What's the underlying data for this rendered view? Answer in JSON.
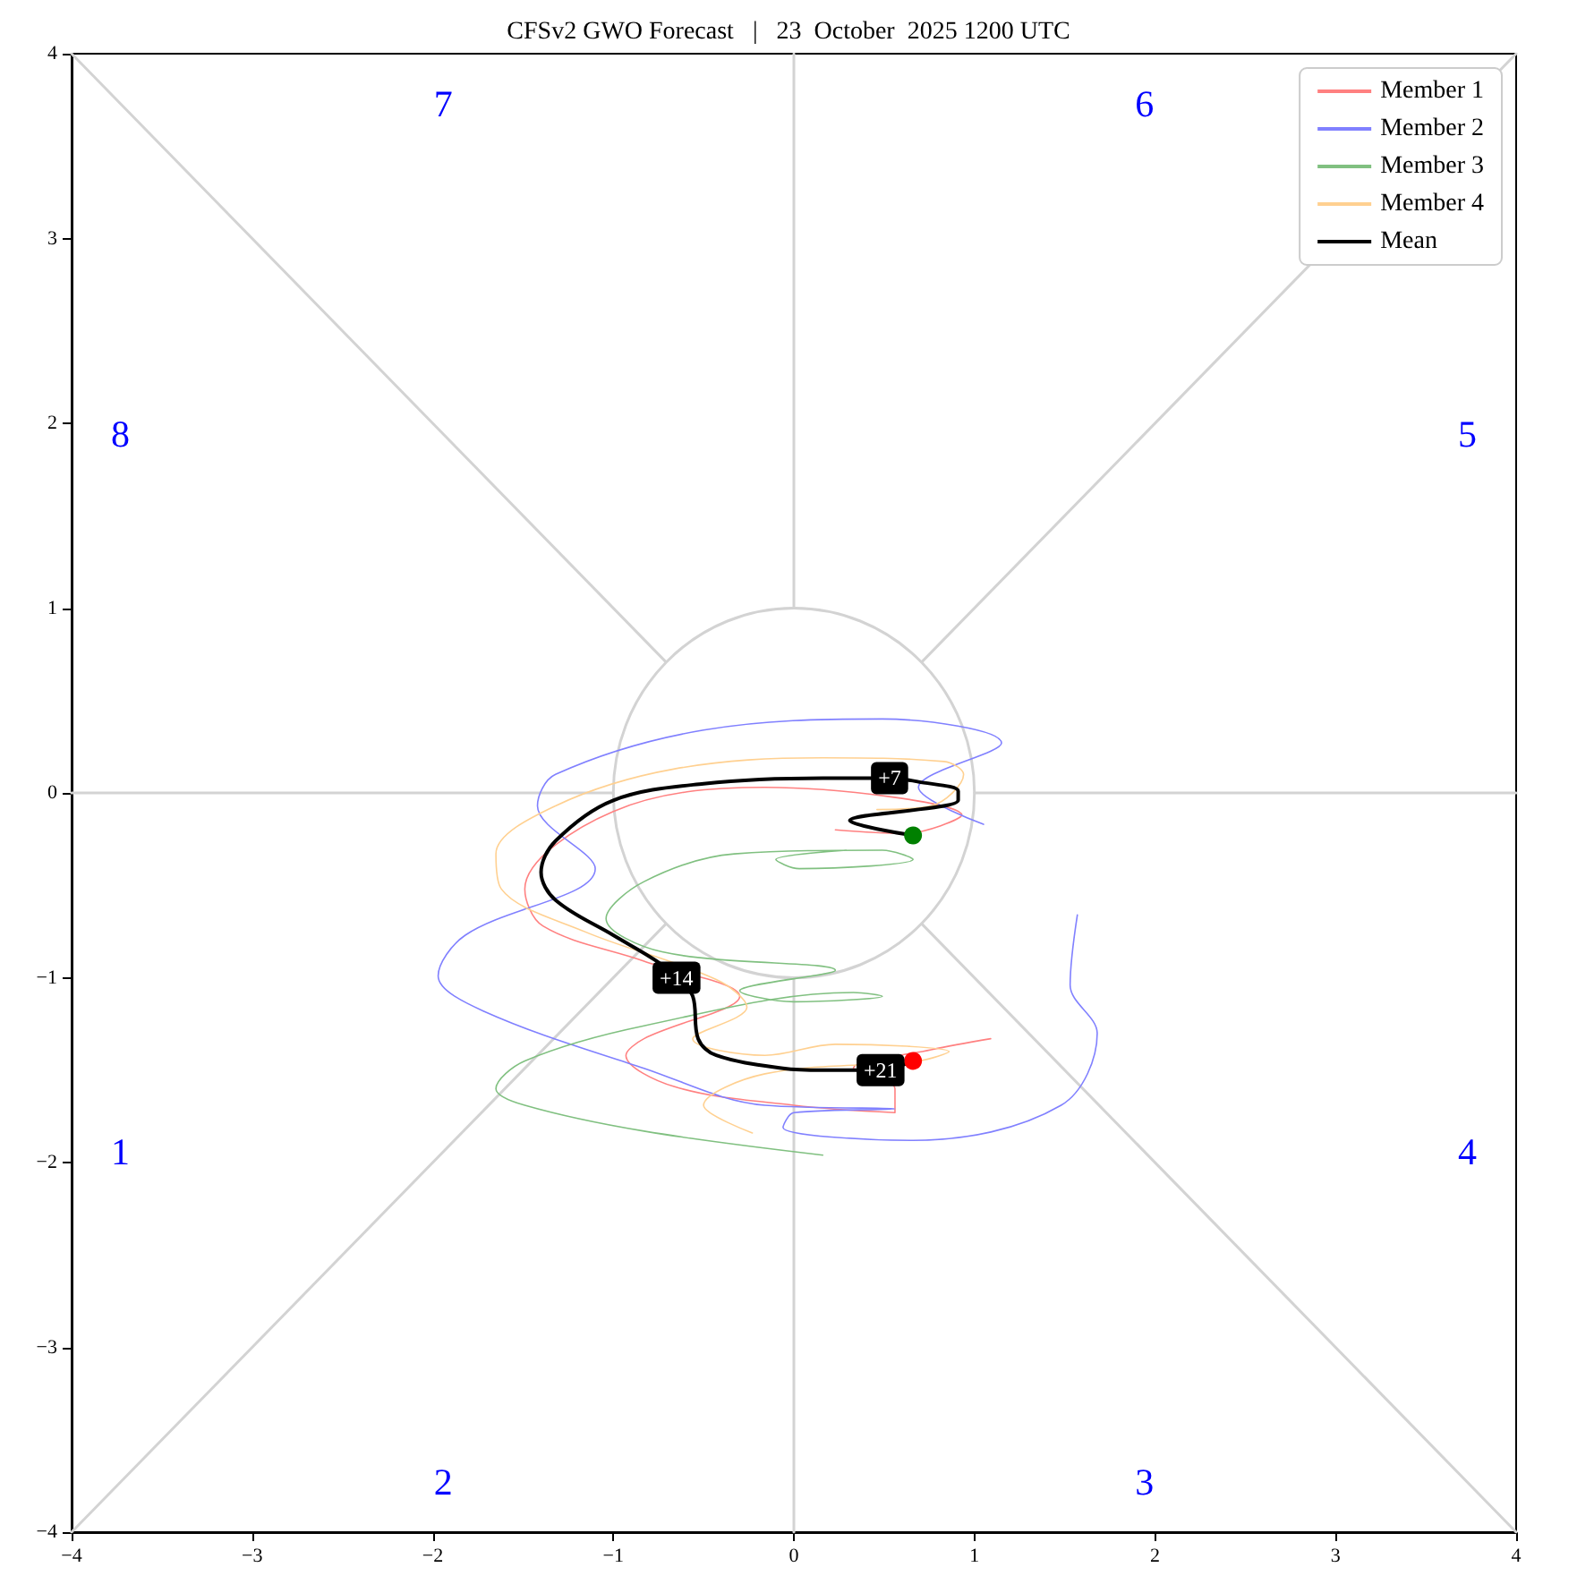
{
  "chart_data": {
    "type": "line",
    "title": "CFSv2 GWO Forecast   |   23  October  2025 1200 UTC",
    "xlim": [
      -4,
      4
    ],
    "ylim": [
      -4,
      4
    ],
    "xticks": [
      {
        "value": -4,
        "label": "−4"
      },
      {
        "value": -3,
        "label": "−3"
      },
      {
        "value": -2,
        "label": "−2"
      },
      {
        "value": -1,
        "label": "−1"
      },
      0,
      1,
      2,
      3,
      4
    ],
    "yticks": [
      {
        "value": -4,
        "label": "−4"
      },
      {
        "value": -3,
        "label": "−3"
      },
      {
        "value": -2,
        "label": "−2"
      },
      {
        "value": -1,
        "label": "−1"
      },
      0,
      1,
      2,
      3,
      4
    ],
    "marker": "none",
    "legend": "top right",
    "annotations": [
      "1",
      "2",
      "3",
      "4",
      "5",
      "6",
      "7",
      "8",
      {
        "text": "+7",
        "x": 0.53,
        "y": 0.08
      },
      {
        "text": "+14",
        "x": -0.65,
        "y": -1.0
      },
      {
        "text": "+21",
        "x": 0.48,
        "y": -1.5
      }
    ],
    "series": [
      {
        "color": "#d3d3d3",
        "x": [
          -4,
          -0.71
        ],
        "values": [
          4,
          0.71
        ]
      },
      {
        "color": "#d3d3d3",
        "x": [
          0.71,
          4
        ],
        "values": [
          -0.71,
          -4
        ]
      },
      {
        "color": "#d3d3d3",
        "x": [
          -4,
          -0.71
        ],
        "values": [
          -4,
          -0.71
        ]
      },
      {
        "color": "#d3d3d3",
        "x": [
          0.71,
          4
        ],
        "values": [
          0.71,
          4
        ]
      },
      {
        "color": "#d3d3d3",
        "x": [
          -4,
          -1
        ],
        "values": [
          0,
          0
        ]
      },
      {
        "color": "#d3d3d3",
        "x": [
          1,
          4
        ],
        "values": [
          0,
          0
        ]
      },
      {
        "color": "#d3d3d3",
        "x": [
          0,
          0
        ],
        "values": [
          4,
          1
        ]
      },
      {
        "color": "#d3d3d3",
        "x": [
          0,
          0
        ],
        "values": [
          -1,
          -4
        ]
      },
      {
        "name": "Member 1",
        "color": "#ff8080",
        "x": [
          0.23,
          0.61,
          0.93,
          -0.16,
          -1.0,
          -1.49,
          -1.39,
          -0.83,
          -0.3,
          -0.83,
          -0.93,
          -0.66,
          0,
          0.56,
          0.56,
          0.33,
          0.76,
          1.09
        ],
        "values": [
          -0.2,
          -0.22,
          -0.12,
          0.03,
          -0.1,
          -0.52,
          -0.72,
          -0.91,
          -1.1,
          -1.33,
          -1.42,
          -1.59,
          -1.69,
          -1.73,
          -1.6,
          -1.49,
          -1.39,
          -1.33
        ]
      },
      {
        "name": "Member 2",
        "color": "#8080ff",
        "x": [
          1.05,
          0.69,
          1.15,
          0.49,
          -0.5,
          -1.32,
          -1.42,
          -1.1,
          -1.82,
          -1.97,
          -1.72,
          -0.83,
          -0.16,
          0.56,
          0,
          -0.06,
          0.66,
          1.48,
          1.68,
          1.53,
          1.57
        ],
        "values": [
          -0.17,
          0.03,
          0.27,
          0.4,
          0.34,
          0.1,
          -0.07,
          -0.41,
          -0.77,
          -0.99,
          -1.18,
          -1.49,
          -1.69,
          -1.71,
          -1.73,
          -1.81,
          -1.88,
          -1.69,
          -1.3,
          -1.04,
          -0.66
        ]
      },
      {
        "name": "Member 3",
        "color": "#80c080",
        "x": [
          0.29,
          -0.1,
          0.03,
          0.66,
          0.49,
          -0.33,
          -0.83,
          -1.04,
          -0.73,
          0.23,
          -0.3,
          0,
          0.49,
          0.33,
          -0.83,
          -1.49,
          -1.65,
          -1.49,
          -0.83,
          0.16
        ],
        "values": [
          -0.31,
          -0.36,
          -0.41,
          -0.36,
          -0.31,
          -0.33,
          -0.48,
          -0.68,
          -0.86,
          -0.96,
          -1.07,
          -1.13,
          -1.1,
          -1.08,
          -1.26,
          -1.45,
          -1.6,
          -1.69,
          -1.83,
          -1.96
        ]
      },
      {
        "name": "Member 4",
        "color": "#ffd090",
        "x": [
          0.46,
          0.76,
          0.94,
          0.83,
          0.16,
          -0.66,
          -1.32,
          -1.65,
          -1.62,
          -1.16,
          -0.43,
          -0.26,
          -0.56,
          -0.16,
          0.23,
          0.86,
          0.69,
          -0.16,
          -0.5,
          -0.23
        ],
        "values": [
          -0.09,
          -0.07,
          0.1,
          0.17,
          0.19,
          0.13,
          -0.07,
          -0.33,
          -0.52,
          -0.75,
          -1.01,
          -1.16,
          -1.33,
          -1.42,
          -1.36,
          -1.4,
          -1.45,
          -1.52,
          -1.69,
          -1.84
        ]
      },
      {
        "name": "Mean",
        "color": "#000000",
        "x": [
          0.66,
          0.31,
          0.91,
          0.91,
          0.69,
          0.53,
          0.16,
          -0.5,
          -1.0,
          -1.32,
          -1.4,
          -1.32,
          -1.0,
          -0.76,
          -0.65,
          -0.56,
          -0.53,
          -0.43,
          -0.06,
          0.16,
          0.48,
          0.66
        ],
        "values": [
          -0.23,
          -0.15,
          -0.04,
          0.01,
          0.06,
          0.08,
          0.08,
          0.05,
          -0.04,
          -0.26,
          -0.43,
          -0.58,
          -0.77,
          -0.91,
          -1.0,
          -1.1,
          -1.33,
          -1.42,
          -1.49,
          -1.5,
          -1.5,
          -1.45
        ]
      },
      {
        "type": "scatter",
        "marker": "circle",
        "color": "#008000",
        "x": [
          0.66
        ],
        "values": [
          -0.23
        ]
      },
      {
        "type": "scatter",
        "marker": "circle",
        "color": "#ff0000",
        "x": [
          0.66
        ],
        "values": [
          -1.45
        ]
      }
    ]
  }
}
